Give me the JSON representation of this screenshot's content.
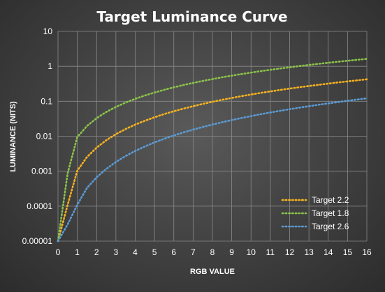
{
  "chart_data": {
    "type": "line",
    "title": "Target Luminance Curve",
    "xlabel": "RGB VALUE",
    "ylabel": "LUMINANCE (NITS)",
    "x": [
      0,
      0.5,
      1,
      1.5,
      2,
      2.5,
      3,
      3.5,
      4,
      4.5,
      5,
      5.5,
      6,
      6.5,
      7,
      7.5,
      8,
      8.5,
      9,
      9.5,
      10,
      10.5,
      11,
      11.5,
      12,
      12.5,
      13,
      13.5,
      14,
      14.5,
      15,
      15.5,
      16
    ],
    "xlim": [
      0,
      16
    ],
    "xticks": [
      "0",
      "1",
      "2",
      "3",
      "4",
      "5",
      "6",
      "7",
      "8",
      "9",
      "10",
      "11",
      "12",
      "13",
      "14",
      "15",
      "16"
    ],
    "ylim": [
      1e-05,
      10
    ],
    "yscale": "log",
    "yticks": [
      "10",
      "1",
      "0.1",
      "0.01",
      "0.001",
      "0.0001",
      "0.00001"
    ],
    "grid": true,
    "legend_position": "bottom-right",
    "series": [
      {
        "name": "Target 2.2",
        "color": "#f5b21e",
        "values": [
          1e-05,
          0.00011,
          0.00103,
          0.00253,
          0.00473,
          0.0077,
          0.01147,
          0.01606,
          0.02148,
          0.02776,
          0.03492,
          0.04296,
          0.05189,
          0.06171,
          0.07245,
          0.08409,
          0.09665,
          0.11013,
          0.12454,
          0.13988,
          0.15615,
          0.17336,
          0.1915,
          0.2106,
          0.23064,
          0.25163,
          0.27357,
          0.29647,
          0.32032,
          0.34513,
          0.37091,
          0.39765,
          0.42535
        ]
      },
      {
        "name": "Target 1.8",
        "color": "#8bc34a",
        "values": [
          1e-05,
          0.00087,
          0.00946,
          0.01955,
          0.03292,
          0.04942,
          0.06903,
          0.09169,
          0.11742,
          0.14617,
          0.17796,
          0.21277,
          0.25061,
          0.29146,
          0.33531,
          0.38217,
          0.43202,
          0.48487,
          0.54071,
          0.59954,
          0.66136,
          0.72616,
          0.79394,
          0.8647,
          0.93844,
          1.01515,
          1.09484,
          1.1775,
          1.26313,
          1.35173,
          1.4433,
          1.53784,
          1.63534
        ]
      },
      {
        "name": "Target 2.6",
        "color": "#5b9bd5",
        "values": [
          1e-05,
          3e-05,
          0.00011,
          0.00033,
          0.00067,
          0.00116,
          0.00184,
          0.00271,
          0.0038,
          0.0051,
          0.00665,
          0.00845,
          0.01051,
          0.01285,
          0.01547,
          0.01838,
          0.0216,
          0.02513,
          0.02898,
          0.03316,
          0.03769,
          0.04256,
          0.04779,
          0.05338,
          0.05934,
          0.06569,
          0.07242,
          0.07954,
          0.08706,
          0.09499,
          0.10333,
          0.11209,
          0.12128
        ]
      }
    ]
  }
}
